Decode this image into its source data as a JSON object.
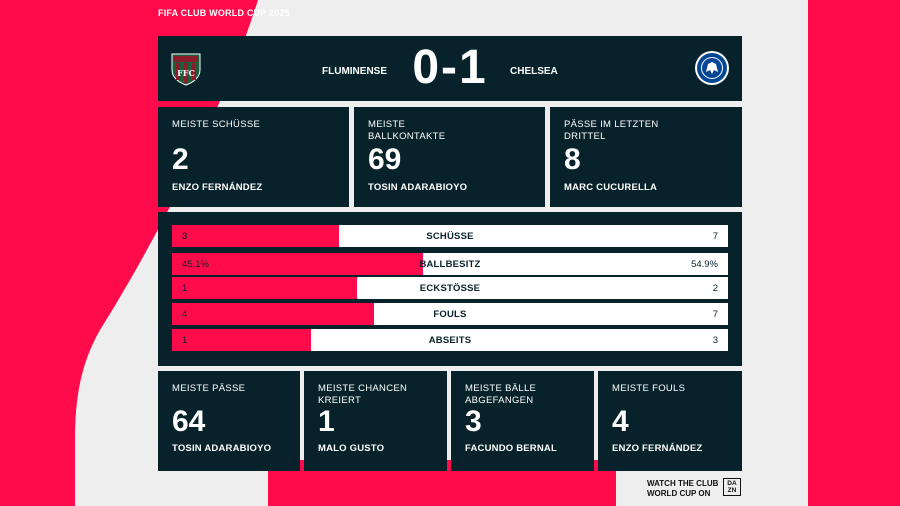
{
  "header": {
    "title": "FIFA CLUB WORLD CUP 2025"
  },
  "match": {
    "home_team": "FLUMINENSE",
    "away_team": "CHELSEA",
    "score": "0-1",
    "home_crest_icon": "fluminense-crest-icon",
    "away_crest_icon": "chelsea-crest-icon"
  },
  "top_stats": [
    {
      "label": "MEISTE SCHÜSSE",
      "value": "2",
      "player": "ENZO FERNÁNDEZ"
    },
    {
      "label": "MEISTE BALLKONTAKTE",
      "value": "69",
      "player": "TOSIN ADARABIOYO"
    },
    {
      "label": "PÄSSE IM LETZTEN DRITTEL",
      "value": "8",
      "player": "MARC CUCURELLA"
    }
  ],
  "comparison": [
    {
      "name": "SCHÜSSE",
      "home": "3",
      "away": "7",
      "home_share": 0.3
    },
    {
      "name": "BALLBESITZ",
      "home": "45.1%",
      "away": "54.9%",
      "home_share": 0.451
    },
    {
      "name": "ECKSTÖSSE",
      "home": "1",
      "away": "2",
      "home_share": 0.333
    },
    {
      "name": "FOULS",
      "home": "4",
      "away": "7",
      "home_share": 0.364
    },
    {
      "name": "ABSEITS",
      "home": "1",
      "away": "3",
      "home_share": 0.25
    }
  ],
  "bottom_stats": [
    {
      "label": "MEISTE PÄSSE",
      "value": "64",
      "player": "TOSIN ADARABIOYO"
    },
    {
      "label": "MEISTE CHANCEN KREIERT",
      "value": "1",
      "player": "MALO GUSTO"
    },
    {
      "label": "MEISTE BÄLLE ABGEFANGEN",
      "value": "3",
      "player": "FACUNDO BERNAL"
    },
    {
      "label": "MEISTE FOULS",
      "value": "4",
      "player": "ENZO FERNÁNDEZ"
    }
  ],
  "footer": {
    "promo_line1": "WATCH THE CLUB",
    "promo_line2": "WORLD CUP ON",
    "logo_top": "DA",
    "logo_bottom": "ZN"
  },
  "colors": {
    "accent": "#ff0a4a",
    "panel": "#07222b",
    "background": "#eeeeee"
  }
}
